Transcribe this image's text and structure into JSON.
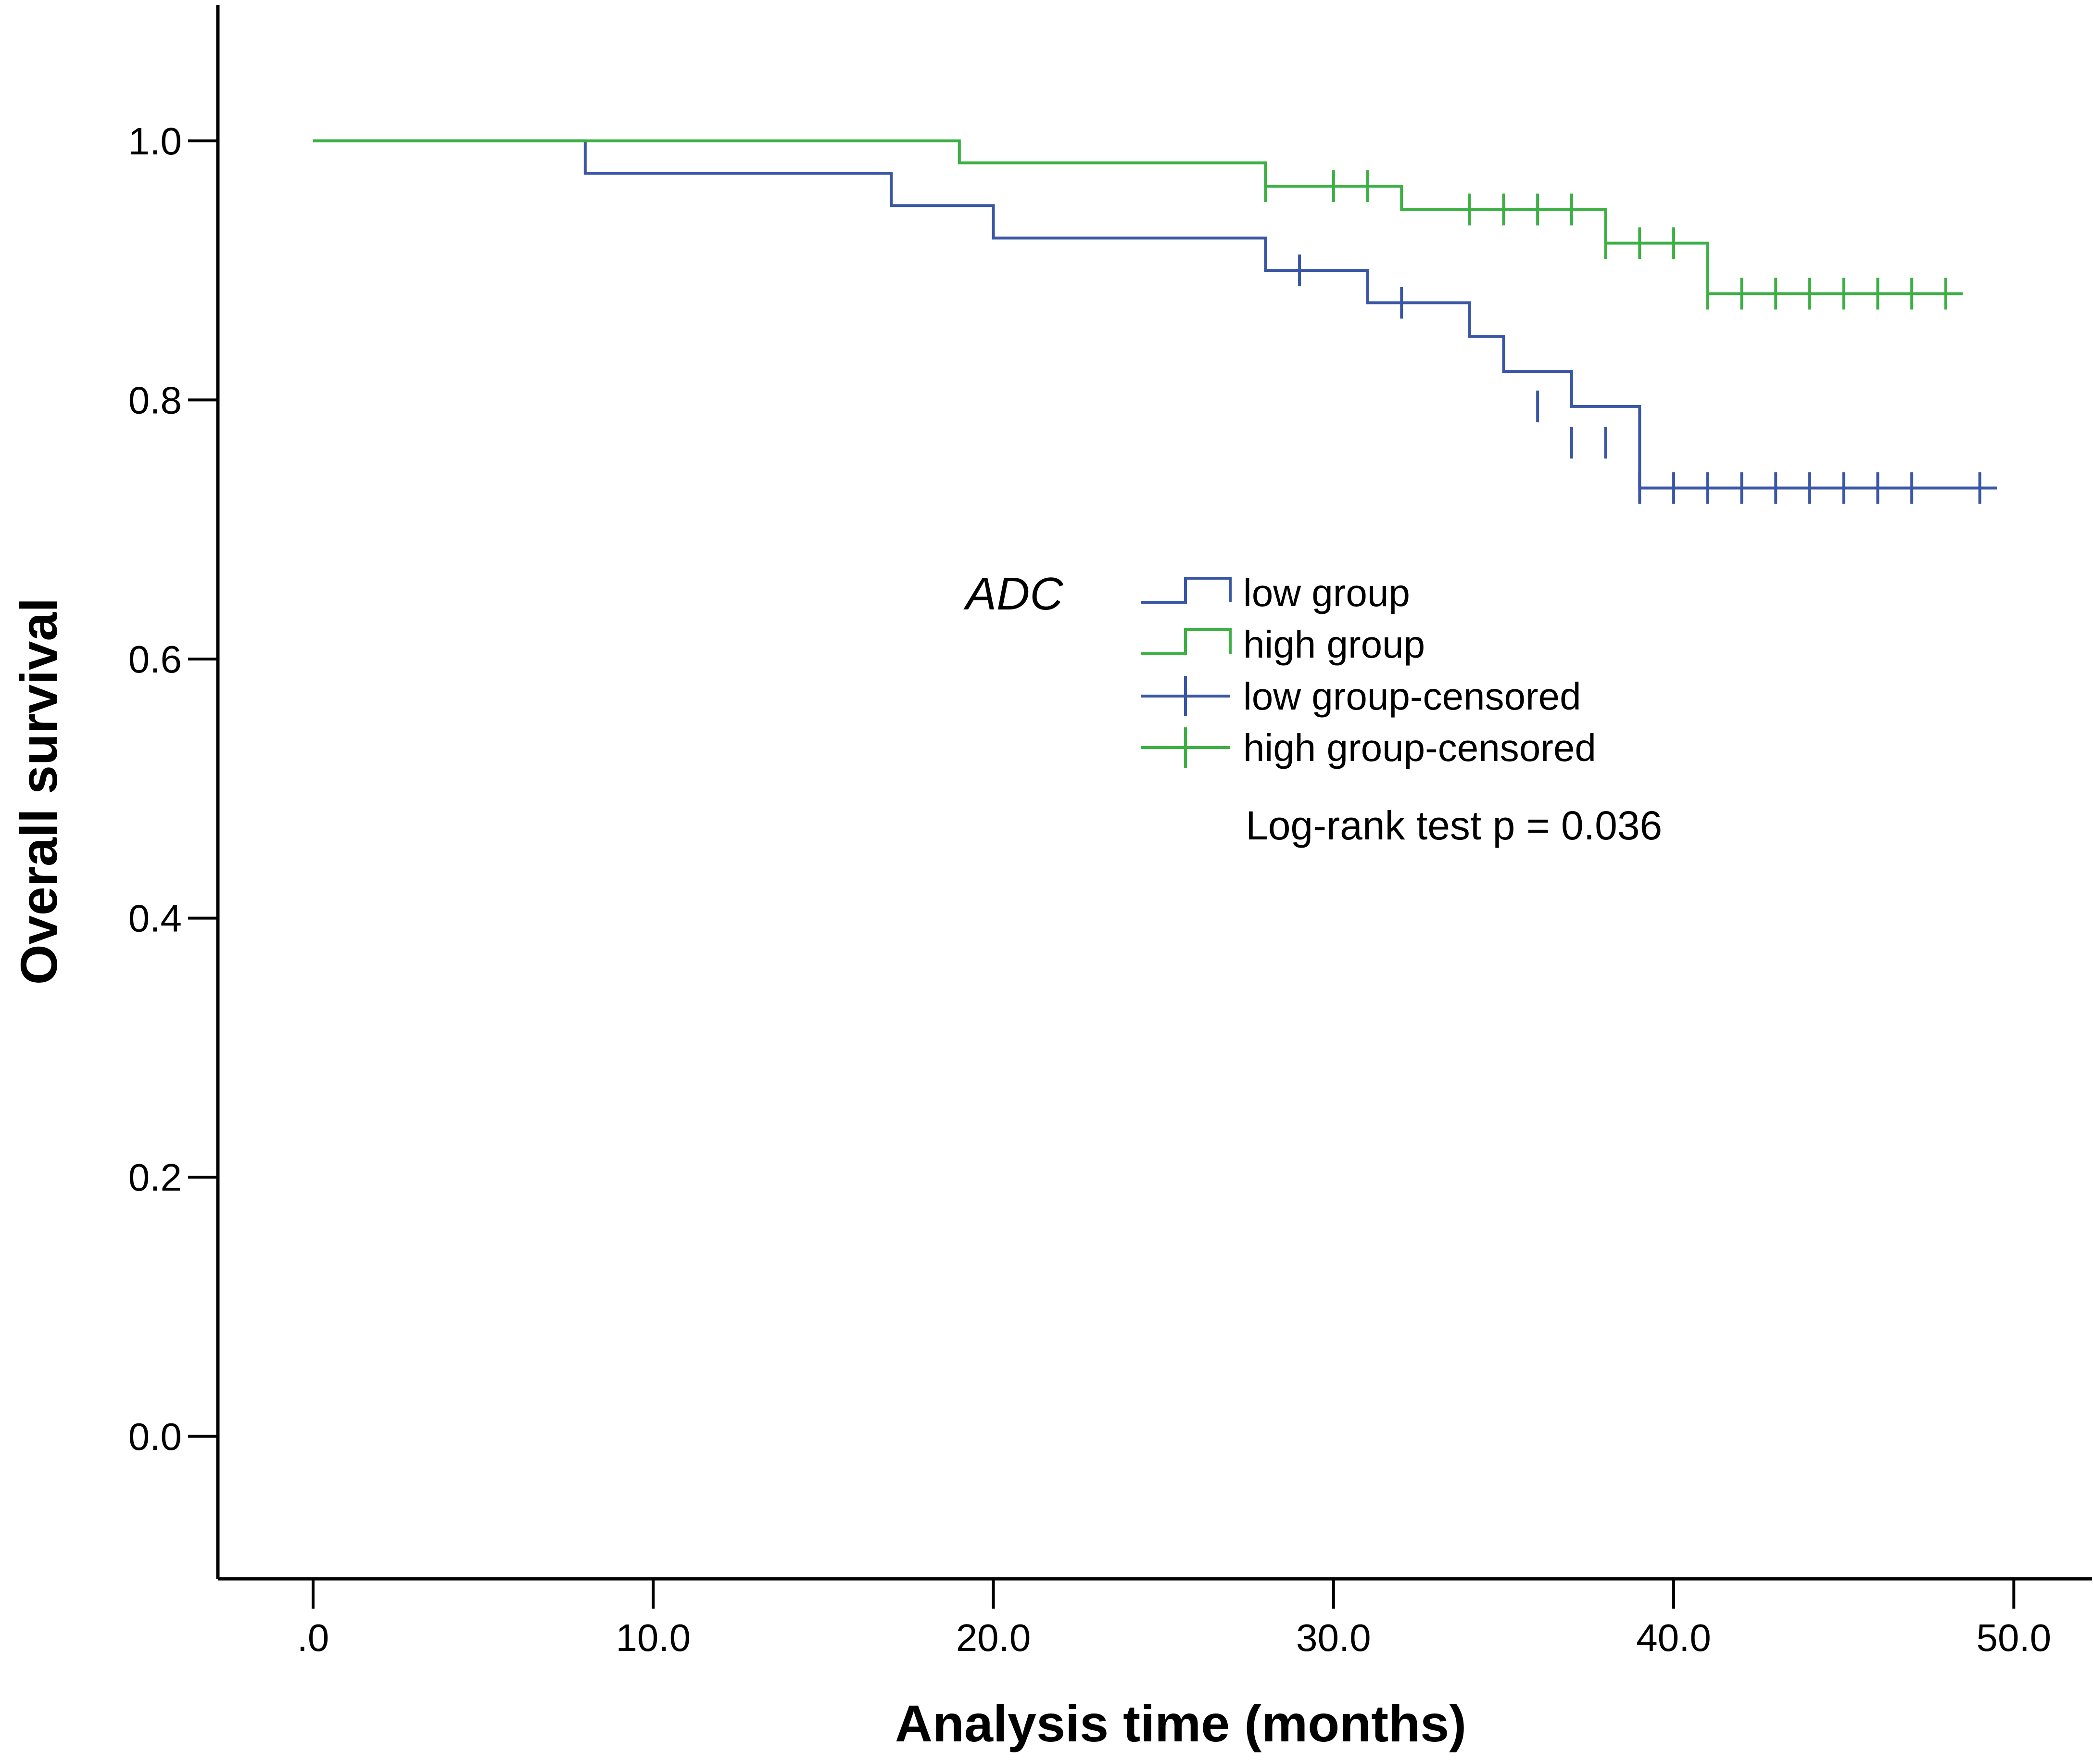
{
  "chart_data": {
    "type": "line",
    "subtype": "kaplan-meier",
    "title": "",
    "xlabel": "Analysis time (months)",
    "ylabel": "Overall survival",
    "xlim": [
      -2.8,
      52.3
    ],
    "ylim": [
      -0.11,
      1.105
    ],
    "xticks": [
      0,
      10,
      20,
      30,
      40,
      50
    ],
    "xtick_labels": [
      ".0",
      "10.0",
      "20.0",
      "30.0",
      "40.0",
      "50.0"
    ],
    "yticks": [
      0,
      0.2,
      0.4,
      0.6,
      0.8,
      1.0
    ],
    "ytick_labels": [
      "0.0",
      "0.2",
      "0.4",
      "0.6",
      "0.8",
      "1.0"
    ],
    "grid": false,
    "legend": {
      "title": "ADC",
      "position": "center-right",
      "entries": [
        {
          "label": "low group",
          "series": "low",
          "kind": "step"
        },
        {
          "label": "high group",
          "series": "high",
          "kind": "step"
        },
        {
          "label": "low group-censored",
          "series": "low",
          "kind": "censor"
        },
        {
          "label": "high group-censored",
          "series": "high",
          "kind": "censor"
        }
      ]
    },
    "series": [
      {
        "name": "low group",
        "color": "#3a56a6",
        "steps": [
          [
            0,
            1.0
          ],
          [
            8,
            0.975
          ],
          [
            17,
            0.95
          ],
          [
            20,
            0.925
          ],
          [
            28,
            0.9
          ],
          [
            31,
            0.875
          ],
          [
            34,
            0.849
          ],
          [
            35,
            0.822
          ],
          [
            37,
            0.795
          ],
          [
            39,
            0.732
          ]
        ],
        "end": 49.5,
        "censored": [
          [
            29,
            0.9
          ],
          [
            32,
            0.875
          ],
          [
            36,
            0.795
          ],
          [
            37,
            0.767
          ],
          [
            38,
            0.767
          ],
          [
            39,
            0.732
          ],
          [
            40,
            0.732
          ],
          [
            41,
            0.732
          ],
          [
            42,
            0.732
          ],
          [
            43,
            0.732
          ],
          [
            44,
            0.732
          ],
          [
            45,
            0.732
          ],
          [
            46,
            0.732
          ],
          [
            47,
            0.732
          ],
          [
            49,
            0.732
          ]
        ]
      },
      {
        "name": "high group",
        "color": "#3cb043",
        "steps": [
          [
            0,
            1.0
          ],
          [
            19,
            0.983
          ],
          [
            28,
            0.965
          ],
          [
            32,
            0.947
          ],
          [
            38,
            0.921
          ],
          [
            41,
            0.882
          ]
        ],
        "end": 48.5,
        "censored": [
          [
            28,
            0.965
          ],
          [
            30,
            0.965
          ],
          [
            31,
            0.965
          ],
          [
            34,
            0.947
          ],
          [
            35,
            0.947
          ],
          [
            36,
            0.947
          ],
          [
            37,
            0.947
          ],
          [
            38,
            0.921
          ],
          [
            39,
            0.921
          ],
          [
            40,
            0.921
          ],
          [
            41,
            0.882
          ],
          [
            42,
            0.882
          ],
          [
            43,
            0.882
          ],
          [
            44,
            0.882
          ],
          [
            45,
            0.882
          ],
          [
            46,
            0.882
          ],
          [
            47,
            0.882
          ],
          [
            48,
            0.882
          ]
        ]
      }
    ],
    "annotations": [
      "Log-rank test p = 0.036"
    ]
  }
}
